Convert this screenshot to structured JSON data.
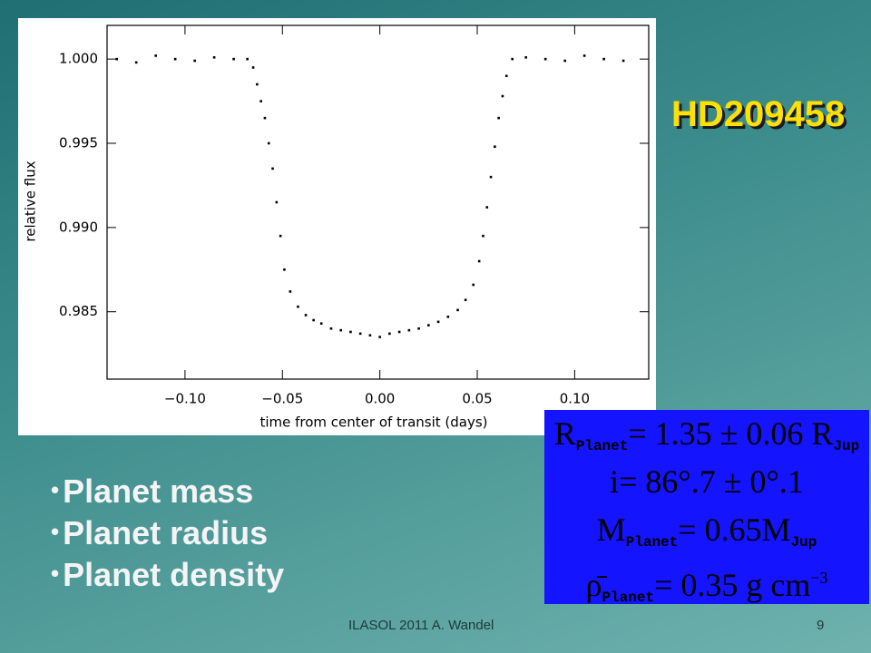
{
  "chart_data": {
    "type": "scatter",
    "xlabel": "time from center of transit (days)",
    "ylabel": "relative flux",
    "color": "#000000",
    "xlim": [
      -0.14,
      0.138
    ],
    "ylim": [
      0.981,
      1.002
    ],
    "xticks": [
      {
        "value": -0.1,
        "label": "−0.10"
      },
      {
        "value": -0.05,
        "label": "−0.05"
      },
      {
        "value": 0,
        "label": "0.00"
      },
      0.05,
      {
        "value": 0.1,
        "label": "0.10"
      }
    ],
    "yticks": [
      {
        "value": 0.985,
        "label": "0.985"
      },
      {
        "value": 0.99,
        "label": "0.990"
      },
      {
        "value": 0.995,
        "label": "0.995"
      },
      {
        "value": 1,
        "label": "1.000"
      }
    ],
    "x": [
      -0.135,
      -0.125,
      -0.115,
      -0.105,
      -0.095,
      -0.085,
      -0.075,
      -0.068,
      -0.065,
      -0.063,
      -0.061,
      -0.059,
      -0.057,
      -0.055,
      -0.053,
      -0.051,
      -0.049,
      -0.046,
      -0.042,
      -0.038,
      -0.034,
      -0.03,
      -0.025,
      -0.02,
      -0.015,
      -0.01,
      -0.005,
      0,
      0.005,
      0.01,
      0.015,
      0.02,
      0.025,
      0.03,
      0.035,
      0.04,
      0.044,
      0.048,
      0.051,
      0.053,
      0.055,
      0.057,
      0.059,
      0.061,
      0.063,
      0.065,
      0.068,
      0.075,
      0.085,
      0.095,
      0.105,
      0.115,
      0.125
    ],
    "values": [
      1.0,
      0.9998,
      1.0002,
      1.0,
      0.9999,
      1.0001,
      1.0,
      1.0,
      0.9995,
      0.9985,
      0.9975,
      0.9965,
      0.995,
      0.9935,
      0.9915,
      0.9895,
      0.9875,
      0.9862,
      0.9853,
      0.9848,
      0.9845,
      0.9843,
      0.984,
      0.9839,
      0.9838,
      0.9837,
      0.9836,
      0.9835,
      0.9837,
      0.9838,
      0.9839,
      0.984,
      0.9842,
      0.9844,
      0.9847,
      0.9851,
      0.9857,
      0.9866,
      0.988,
      0.9895,
      0.9912,
      0.993,
      0.9948,
      0.9965,
      0.9978,
      0.999,
      1.0,
      1.0001,
      1.0,
      0.9999,
      1.0002,
      1.0,
      0.9999
    ]
  },
  "slide": {
    "title": "HD209458",
    "bullets": [
      "Planet mass",
      "Planet radius",
      "Planet density"
    ],
    "equations": [
      {
        "lhs": "R",
        "lhs_sub": "Planet",
        "rhs": "= 1.35 ± 0.06 R",
        "rhs_sub": "Jup"
      },
      {
        "lhs": "i",
        "rhs": "= 86°.7 ± 0°.1"
      },
      {
        "lhs": "M",
        "lhs_sub": "Planet",
        "rhs": "= 0.65M",
        "rhs_sub": "Jup"
      },
      {
        "lhs": "ρ̄",
        "lhs_sub": "Planet",
        "rhs": "= 0.35 g cm",
        "rhs_sup": "−3"
      }
    ],
    "footer": "ILASOL 2011 A. Wandel",
    "page_number": "9"
  }
}
